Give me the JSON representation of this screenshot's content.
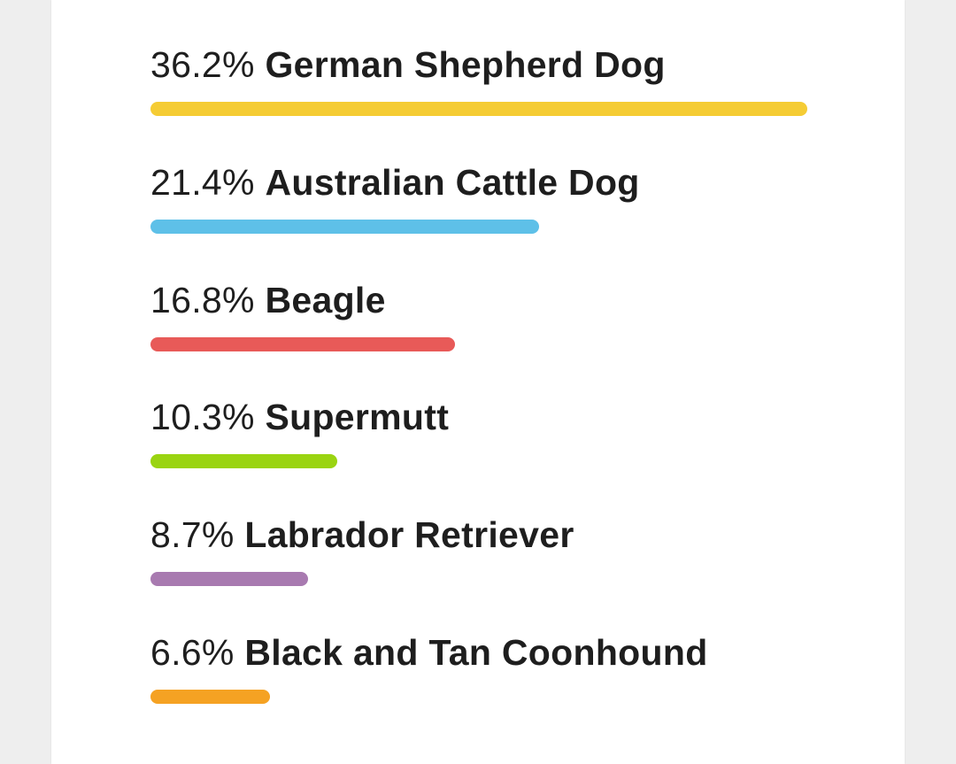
{
  "breeds": [
    {
      "percent": "36.2%",
      "value": 36.2,
      "name": "German Shepherd Dog",
      "color": "#f5cc34"
    },
    {
      "percent": "21.4%",
      "value": 21.4,
      "name": "Australian Cattle Dog",
      "color": "#5ec0e8"
    },
    {
      "percent": "16.8%",
      "value": 16.8,
      "name": "Beagle",
      "color": "#e85a58"
    },
    {
      "percent": "10.3%",
      "value": 10.3,
      "name": "Supermutt",
      "color": "#9ad411"
    },
    {
      "percent": "8.7%",
      "value": 8.7,
      "name": "Labrador Retriever",
      "color": "#a87ab0"
    },
    {
      "percent": "6.6%",
      "value": 6.6,
      "name": "Black and Tan Coonhound",
      "color": "#f5a223"
    }
  ]
}
